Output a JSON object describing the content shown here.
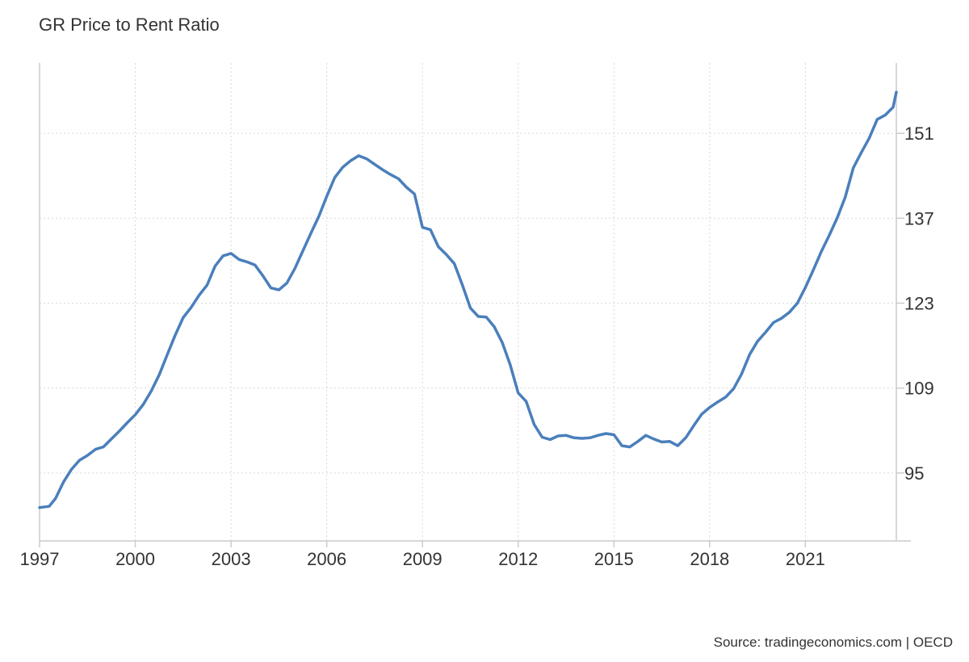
{
  "colors": {
    "series": "#4a7fbb",
    "grid": "#d9d9d9",
    "axis": "#cccccc",
    "text": "#333333"
  },
  "chart_data": {
    "type": "line",
    "title": "GR Price to Rent Ratio",
    "source": "Source: tradingeconomics.com | OECD",
    "xlabel": "",
    "ylabel": "",
    "xlim": [
      1997,
      2023.85
    ],
    "ylim": [
      83.8,
      162.6
    ],
    "x_ticks": [
      1997,
      2000,
      2003,
      2006,
      2009,
      2012,
      2015,
      2018,
      2021
    ],
    "x_tick_labels": [
      "1997",
      "2000",
      "2003",
      "2006",
      "2009",
      "2012",
      "2015",
      "2018",
      "2021"
    ],
    "y_ticks": [
      95,
      109,
      123,
      137,
      151
    ],
    "y_tick_labels": [
      "95",
      "109",
      "123",
      "137",
      "151"
    ],
    "grid": true,
    "legend": "none",
    "series": [
      {
        "x": [
          1997.0,
          1997.3,
          1997.5,
          1997.75,
          1998.0,
          1998.25,
          1998.5,
          1998.75,
          1999.0,
          1999.25,
          1999.5,
          1999.75,
          2000.0,
          2000.25,
          2000.5,
          2000.75,
          2001.0,
          2001.25,
          2001.5,
          2001.75,
          2002.0,
          2002.25,
          2002.5,
          2002.75,
          2003.0,
          2003.25,
          2003.5,
          2003.75,
          2004.0,
          2004.25,
          2004.5,
          2004.75,
          2005.0,
          2005.25,
          2005.5,
          2005.75,
          2006.0,
          2006.25,
          2006.5,
          2006.75,
          2007.0,
          2007.25,
          2007.5,
          2007.75,
          2008.0,
          2008.25,
          2008.5,
          2008.75,
          2009.0,
          2009.25,
          2009.5,
          2009.75,
          2010.0,
          2010.25,
          2010.5,
          2010.75,
          2011.0,
          2011.25,
          2011.5,
          2011.75,
          2012.0,
          2012.25,
          2012.5,
          2012.75,
          2013.0,
          2013.25,
          2013.5,
          2013.75,
          2014.0,
          2014.25,
          2014.5,
          2014.75,
          2015.0,
          2015.25,
          2015.5,
          2015.75,
          2016.0,
          2016.25,
          2016.5,
          2016.75,
          2017.0,
          2017.25,
          2017.5,
          2017.75,
          2018.0,
          2018.25,
          2018.5,
          2018.75,
          2019.0,
          2019.25,
          2019.5,
          2019.75,
          2020.0,
          2020.25,
          2020.5,
          2020.75,
          2021.0,
          2021.25,
          2021.5,
          2021.75,
          2022.0,
          2022.25,
          2022.5,
          2022.75,
          2023.0,
          2023.25,
          2023.5,
          2023.75,
          2023.85
        ],
        "values": [
          89.3,
          89.5,
          90.8,
          93.5,
          95.6,
          97.1,
          97.9,
          98.9,
          99.3,
          100.6,
          101.9,
          103.3,
          104.6,
          106.3,
          108.5,
          111.2,
          114.5,
          117.7,
          120.6,
          122.3,
          124.3,
          126.0,
          129.1,
          130.8,
          131.2,
          130.2,
          129.8,
          129.3,
          127.5,
          125.5,
          125.2,
          126.3,
          128.7,
          131.6,
          134.5,
          137.3,
          140.6,
          143.7,
          145.4,
          146.5,
          147.3,
          146.8,
          145.9,
          145.0,
          144.2,
          143.5,
          142.1,
          141.0,
          135.5,
          135.1,
          132.3,
          131.0,
          129.5,
          126.0,
          122.2,
          120.8,
          120.7,
          119.1,
          116.5,
          112.8,
          108.2,
          106.8,
          103.0,
          100.9,
          100.5,
          101.1,
          101.2,
          100.8,
          100.7,
          100.8,
          101.2,
          101.5,
          101.3,
          99.5,
          99.3,
          100.2,
          101.2,
          100.6,
          100.1,
          100.2,
          99.5,
          100.8,
          102.8,
          104.7,
          105.8,
          106.7,
          107.5,
          108.9,
          111.3,
          114.5,
          116.7,
          118.2,
          119.8,
          120.5,
          121.5,
          123.0,
          125.6,
          128.5,
          131.5,
          134.2,
          137.1,
          140.5,
          145.3,
          147.8,
          150.2,
          153.3,
          154.0,
          155.3,
          157.8
        ]
      }
    ]
  }
}
